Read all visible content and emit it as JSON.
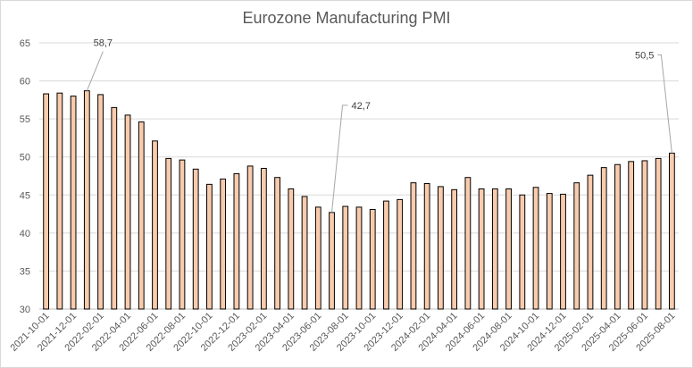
{
  "chart_data": {
    "type": "bar",
    "title": "Eurozone Manufacturing PMI",
    "xlabel": "",
    "ylabel": "",
    "ylim": [
      30,
      65
    ],
    "yticks": [
      30,
      35,
      40,
      45,
      50,
      55,
      60,
      65
    ],
    "grid": true,
    "legend": "none",
    "colors": {
      "bar_fill": "#f8cbad",
      "bar_stroke": "#000000",
      "grid": "#d9d9d9",
      "axis": "#bfbfbf"
    },
    "categories": [
      "2021-10-01",
      "2021-11-01",
      "2021-12-01",
      "2022-01-01",
      "2022-02-01",
      "2022-03-01",
      "2022-04-01",
      "2022-05-01",
      "2022-06-01",
      "2022-07-01",
      "2022-08-01",
      "2022-09-01",
      "2022-10-01",
      "2022-11-01",
      "2022-12-01",
      "2023-01-01",
      "2023-02-01",
      "2023-03-01",
      "2023-04-01",
      "2023-05-01",
      "2023-06-01",
      "2023-07-01",
      "2023-08-01",
      "2023-09-01",
      "2023-10-01",
      "2023-11-01",
      "2023-12-01",
      "2024-01-01",
      "2024-02-01",
      "2024-03-01",
      "2024-04-01",
      "2024-05-01",
      "2024-06-01",
      "2024-07-01",
      "2024-08-01",
      "2024-09-01",
      "2024-10-01",
      "2024-11-01",
      "2024-12-01",
      "2025-01-01",
      "2025-02-01",
      "2025-03-01",
      "2025-04-01",
      "2025-05-01",
      "2025-06-01",
      "2025-07-01",
      "2025-08-01"
    ],
    "x_tick_labels": [
      "2021-10-01",
      "2021-12-01",
      "2022-02-01",
      "2022-04-01",
      "2022-06-01",
      "2022-08-01",
      "2022-10-01",
      "2022-12-01",
      "2023-02-01",
      "2023-04-01",
      "2023-06-01",
      "2023-08-01",
      "2023-10-01",
      "2023-12-01",
      "2024-02-01",
      "2024-04-01",
      "2024-06-01",
      "2024-08-01",
      "2024-10-01",
      "2024-12-01",
      "2025-02-01",
      "2025-04-01",
      "2025-06-01",
      "2025-08-01"
    ],
    "values": [
      58.3,
      58.4,
      58.0,
      58.7,
      58.2,
      56.5,
      55.5,
      54.6,
      52.1,
      49.8,
      49.6,
      48.4,
      46.4,
      47.1,
      47.8,
      48.8,
      48.5,
      47.3,
      45.8,
      44.8,
      43.4,
      42.7,
      43.5,
      43.4,
      43.1,
      44.2,
      44.4,
      46.6,
      46.5,
      46.1,
      45.7,
      47.3,
      45.8,
      45.8,
      45.8,
      45.0,
      46.0,
      45.2,
      45.1,
      46.6,
      47.6,
      48.6,
      49.0,
      49.4,
      49.5,
      49.8,
      50.5
    ],
    "annotations": [
      {
        "label": "58,7",
        "category": "2022-01-01",
        "value": 58.7
      },
      {
        "label": "42,7",
        "category": "2023-07-01",
        "value": 42.7
      },
      {
        "label": "50,5",
        "category": "2025-08-01",
        "value": 50.5
      }
    ]
  }
}
